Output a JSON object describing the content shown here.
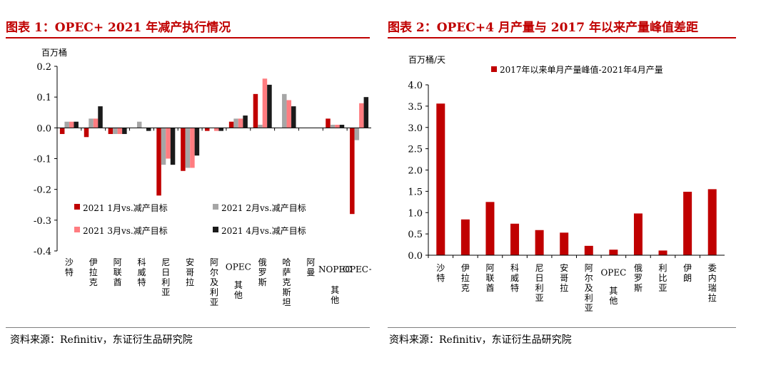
{
  "chart_data": [
    {
      "type": "bar",
      "title": "图表 1：OPEC+ 2021 年减产执行情况",
      "ylabel": "百万桶",
      "ylim": [
        -0.4,
        0.2
      ],
      "yticks": [
        "0.2",
        "0.1",
        "0.0",
        "-0.1",
        "-0.2",
        "-0.3",
        "-0.4"
      ],
      "categories": [
        "沙特",
        "伊拉克",
        "阿联酋",
        "科威特",
        "尼日利亚",
        "安哥拉",
        "阿尔及利亚",
        "OPEC其他",
        "俄罗斯",
        "哈萨克斯坦",
        "阿曼",
        "NOPEC其他",
        "OPEC+"
      ],
      "series": [
        {
          "name": "2021 1月vs.减产目标",
          "color": "#c00000",
          "values": [
            -0.02,
            -0.03,
            -0.02,
            0.0,
            -0.22,
            -0.14,
            -0.01,
            0.02,
            0.11,
            0.0,
            0.0,
            0.03,
            -0.28
          ]
        },
        {
          "name": "2021 2月vs.减产目标",
          "color": "#a6a6a6",
          "values": [
            0.02,
            0.03,
            -0.02,
            0.02,
            -0.12,
            -0.13,
            0.0,
            0.03,
            0.01,
            0.11,
            0.0,
            0.01,
            -0.04
          ]
        },
        {
          "name": "2021 3月vs.减产目标",
          "color": "#ff7c80",
          "values": [
            0.02,
            0.03,
            -0.02,
            0.0,
            -0.1,
            -0.13,
            -0.01,
            0.03,
            0.16,
            0.09,
            0.0,
            0.01,
            0.08
          ]
        },
        {
          "name": "2021 4月vs.减产目标",
          "color": "#1a1a1a",
          "values": [
            0.02,
            0.07,
            -0.02,
            -0.01,
            -0.12,
            -0.09,
            -0.01,
            0.04,
            0.14,
            0.07,
            0.0,
            0.01,
            0.1
          ]
        }
      ],
      "legend": "bottom-left",
      "grid": false,
      "source": "资料来源：Refinitiv，东证衍生品研究院"
    },
    {
      "type": "bar",
      "title": "图表 2：OPEC+4 月产量与 2017 年以来产量峰值差距",
      "ylabel": "百万桶/天",
      "ylim": [
        0,
        4.0
      ],
      "yticks": [
        "4.0",
        "3.5",
        "3.0",
        "2.5",
        "2.0",
        "1.5",
        "1.0",
        "0.5",
        "0.0"
      ],
      "categories": [
        "沙特",
        "伊拉克",
        "阿联酋",
        "科威特",
        "尼日利亚",
        "安哥拉",
        "阿尔及利亚",
        "OPEC其他",
        "俄罗斯",
        "利比亚",
        "伊朗",
        "委内瑞拉"
      ],
      "series": [
        {
          "name": "2017年以来单月产量峰值-2021年4月产量",
          "color": "#c00000",
          "values": [
            3.56,
            0.84,
            1.25,
            0.74,
            0.59,
            0.53,
            0.22,
            0.13,
            0.98,
            0.11,
            1.49,
            1.55
          ]
        }
      ],
      "legend": "top",
      "grid": false,
      "source": "资料来源：Refinitiv，东证衍生品研究院"
    }
  ]
}
